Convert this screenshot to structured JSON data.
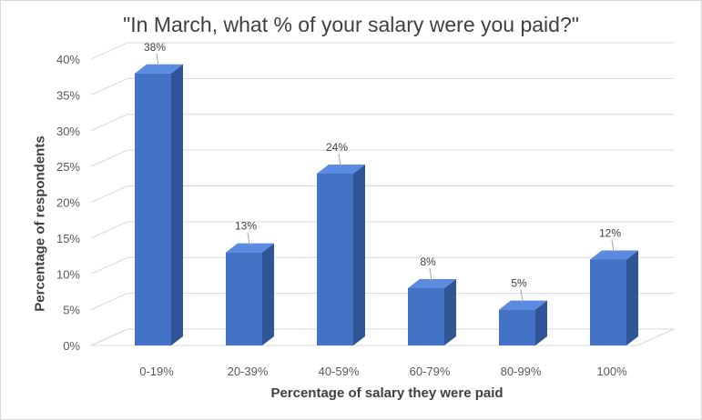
{
  "chart_data": {
    "type": "bar",
    "title": "\"In March, what % of your salary were you paid?\"",
    "xlabel": "Percentage of salary they were paid",
    "ylabel": "Percentage of respondents",
    "categories": [
      "0-19%",
      "20-39%",
      "40-59%",
      "60-79%",
      "80-99%",
      "100%"
    ],
    "values": [
      38,
      13,
      24,
      8,
      5,
      12
    ],
    "data_labels": [
      "38%",
      "13%",
      "24%",
      "8%",
      "5%",
      "12%"
    ],
    "ylim": [
      0,
      40
    ],
    "yticks": [
      "0%",
      "5%",
      "10%",
      "15%",
      "20%",
      "25%",
      "30%",
      "35%",
      "40%"
    ],
    "grid": true,
    "style": "3d-column",
    "colors": {
      "bar_front": "#4472c4",
      "bar_top": "#5b8be0",
      "bar_side": "#2f5597"
    }
  }
}
